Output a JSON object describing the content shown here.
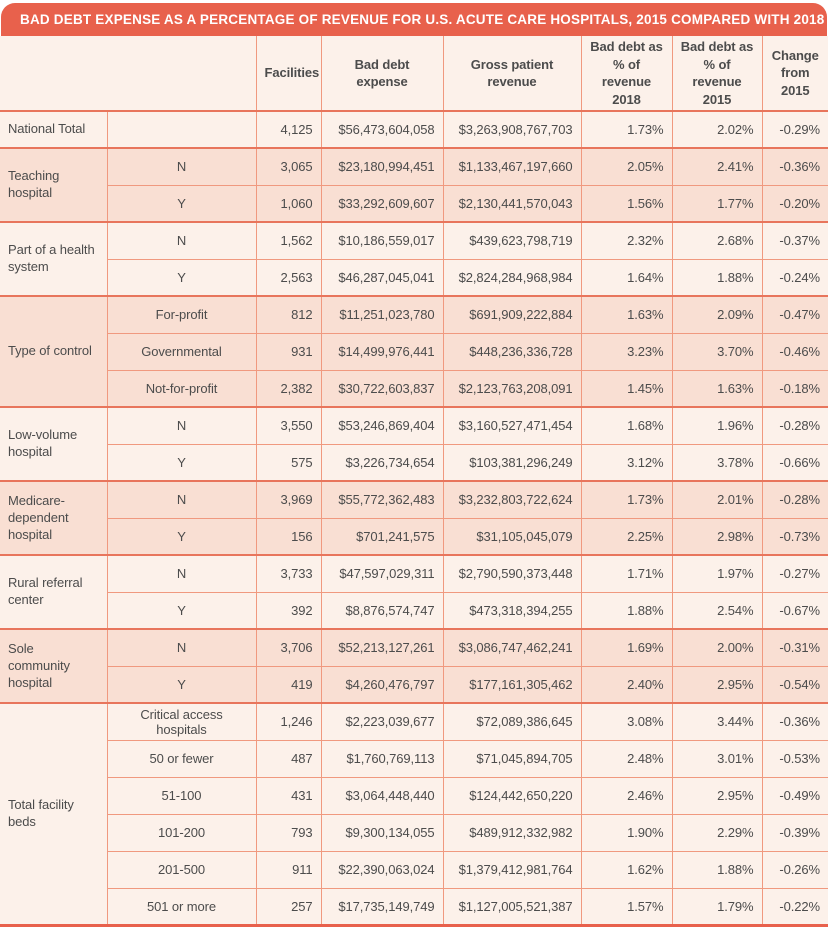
{
  "title": "BAD DEBT EXPENSE AS A PERCENTAGE OF REVENUE FOR U.S. ACUTE CARE HOSPITALS, 2015 COMPARED WITH 2018",
  "colors": {
    "accent": "#E8614C",
    "row_cream": "#FCF1EA",
    "row_pink": "#F9DFD3",
    "grid_line": "#F0997F",
    "group_divider": "#E8755C",
    "title_text": "#FFFFFF"
  },
  "chart_data": {
    "type": "table",
    "title": "Bad debt expense as a percentage of revenue for U.S. acute care hospitals, 2015 compared with 2018",
    "columns": [
      "Facilities",
      "Bad debt expense",
      "Gross patient revenue",
      "Bad debt as % of revenue 2018",
      "Bad debt as % of revenue 2015",
      "Change from 2015"
    ],
    "groups": [
      {
        "label": "National Total",
        "tone": "cream",
        "rows": [
          [
            "",
            "4,125",
            "$56,473,604,058",
            "$3,263,908,767,703",
            "1.73%",
            "2.02%",
            "-0.29%"
          ]
        ]
      },
      {
        "label": "Teaching hospital",
        "tone": "pink",
        "rows": [
          [
            "N",
            "3,065",
            "$23,180,994,451",
            "$1,133,467,197,660",
            "2.05%",
            "2.41%",
            "-0.36%"
          ],
          [
            "Y",
            "1,060",
            "$33,292,609,607",
            "$2,130,441,570,043",
            "1.56%",
            "1.77%",
            "-0.20%"
          ]
        ]
      },
      {
        "label": "Part of a health system",
        "tone": "cream",
        "rows": [
          [
            "N",
            "1,562",
            "$10,186,559,017",
            "$439,623,798,719",
            "2.32%",
            "2.68%",
            "-0.37%"
          ],
          [
            "Y",
            "2,563",
            "$46,287,045,041",
            "$2,824,284,968,984",
            "1.64%",
            "1.88%",
            "-0.24%"
          ]
        ]
      },
      {
        "label": "Type of control",
        "tone": "pink",
        "rows": [
          [
            "For-profit",
            "812",
            "$11,251,023,780",
            "$691,909,222,884",
            "1.63%",
            "2.09%",
            "-0.47%"
          ],
          [
            "Governmental",
            "931",
            "$14,499,976,441",
            "$448,236,336,728",
            "3.23%",
            "3.70%",
            "-0.46%"
          ],
          [
            "Not-for-profit",
            "2,382",
            "$30,722,603,837",
            "$2,123,763,208,091",
            "1.45%",
            "1.63%",
            "-0.18%"
          ]
        ]
      },
      {
        "label": "Low-volume hospital",
        "tone": "cream",
        "rows": [
          [
            "N",
            "3,550",
            "$53,246,869,404",
            "$3,160,527,471,454",
            "1.68%",
            "1.96%",
            "-0.28%"
          ],
          [
            "Y",
            "575",
            "$3,226,734,654",
            "$103,381,296,249",
            "3.12%",
            "3.78%",
            "-0.66%"
          ]
        ]
      },
      {
        "label": "Medicare-dependent hospital",
        "tone": "pink",
        "rows": [
          [
            "N",
            "3,969",
            "$55,772,362,483",
            "$3,232,803,722,624",
            "1.73%",
            "2.01%",
            "-0.28%"
          ],
          [
            "Y",
            "156",
            "$701,241,575",
            "$31,105,045,079",
            "2.25%",
            "2.98%",
            "-0.73%"
          ]
        ]
      },
      {
        "label": "Rural referral center",
        "tone": "cream",
        "rows": [
          [
            "N",
            "3,733",
            "$47,597,029,311",
            "$2,790,590,373,448",
            "1.71%",
            "1.97%",
            "-0.27%"
          ],
          [
            "Y",
            "392",
            "$8,876,574,747",
            "$473,318,394,255",
            "1.88%",
            "2.54%",
            "-0.67%"
          ]
        ]
      },
      {
        "label": "Sole community hospital",
        "tone": "pink",
        "rows": [
          [
            "N",
            "3,706",
            "$52,213,127,261",
            "$3,086,747,462,241",
            "1.69%",
            "2.00%",
            "-0.31%"
          ],
          [
            "Y",
            "419",
            "$4,260,476,797",
            "$177,161,305,462",
            "2.40%",
            "2.95%",
            "-0.54%"
          ]
        ]
      },
      {
        "label": "Total facility beds",
        "tone": "cream",
        "rows": [
          [
            "Critical access hospitals",
            "1,246",
            "$2,223,039,677",
            "$72,089,386,645",
            "3.08%",
            "3.44%",
            "-0.36%"
          ],
          [
            "50 or fewer",
            "487",
            "$1,760,769,113",
            "$71,045,894,705",
            "2.48%",
            "3.01%",
            "-0.53%"
          ],
          [
            "51-100",
            "431",
            "$3,064,448,440",
            "$124,442,650,220",
            "2.46%",
            "2.95%",
            "-0.49%"
          ],
          [
            "101-200",
            "793",
            "$9,300,134,055",
            "$489,912,332,982",
            "1.90%",
            "2.29%",
            "-0.39%"
          ],
          [
            "201-500",
            "911",
            "$22,390,063,024",
            "$1,379,412,981,764",
            "1.62%",
            "1.88%",
            "-0.26%"
          ],
          [
            "501 or more",
            "257",
            "$17,735,149,749",
            "$1,127,005,521,387",
            "1.57%",
            "1.79%",
            "-0.22%"
          ]
        ]
      }
    ]
  }
}
